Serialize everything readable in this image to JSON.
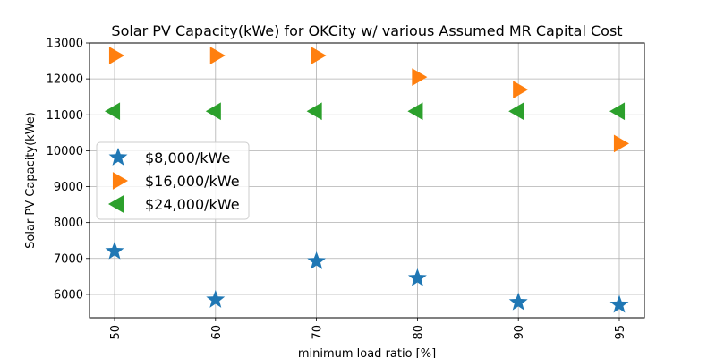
{
  "chart_data": {
    "type": "scatter",
    "title": "Solar PV Capacity(kWe) for OKCity w/ various Assumed MR Capital Cost",
    "xlabel": "minimum load ratio [%]",
    "ylabel": "Solar PV Capacity(kWe)",
    "categories": [
      "50",
      "60",
      "70",
      "80",
      "90",
      "95"
    ],
    "ylim": [
      5350,
      13000
    ],
    "yticks": [
      6000,
      7000,
      8000,
      9000,
      10000,
      11000,
      12000,
      13000
    ],
    "grid": true,
    "legend_position": "center-left",
    "series": [
      {
        "name": "$8,000/kWe",
        "marker": "star",
        "color": "#1f77b4",
        "values": [
          7200,
          5850,
          6920,
          6450,
          5780,
          5710
        ]
      },
      {
        "name": "$16,000/kWe",
        "marker": "triangle-right",
        "color": "#ff7f0e",
        "values": [
          12650,
          12650,
          12650,
          12050,
          11700,
          10200
        ]
      },
      {
        "name": "$24,000/kWe",
        "marker": "triangle-left",
        "color": "#2ca02c",
        "values": [
          11100,
          11100,
          11100,
          11100,
          11100,
          11100
        ]
      }
    ]
  }
}
